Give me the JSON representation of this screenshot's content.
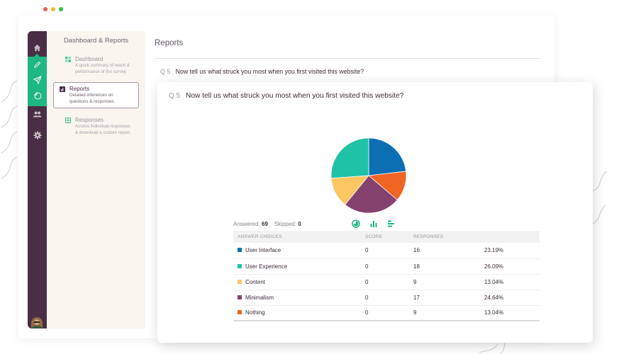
{
  "window": {
    "dots": [
      {
        "name": "close",
        "color": "#f25a55"
      },
      {
        "name": "minimize",
        "color": "#f5b731"
      },
      {
        "name": "maximize",
        "color": "#2fc549"
      }
    ]
  },
  "rail": {
    "items": [
      {
        "name": "home",
        "icon": "home-icon"
      },
      {
        "name": "edit",
        "icon": "pencil-icon"
      },
      {
        "name": "distribute",
        "icon": "send-icon"
      },
      {
        "name": "analyze",
        "icon": "pie-icon"
      },
      {
        "name": "users",
        "icon": "users-icon"
      },
      {
        "name": "settings",
        "icon": "gear-icon"
      }
    ],
    "colors": {
      "bg": "#4a2e45",
      "active": "#1fb784"
    }
  },
  "subnav": {
    "title": "Dashboard & Reports",
    "items": [
      {
        "label": "Dashboard",
        "desc1": "A quick summary of reach &",
        "desc2": "performance of the survey.",
        "active": false
      },
      {
        "label": "Reports",
        "desc1": "Detailed inferences on",
        "desc2": "questions & responses.",
        "active": true
      },
      {
        "label": "Responses",
        "desc1": "Access individual responses",
        "desc2": "& download a custom report.",
        "active": false
      }
    ]
  },
  "main": {
    "title": "Reports",
    "question_num": "Q 5",
    "question_text": "Now tell us what struck you most when you first visited this website?"
  },
  "card": {
    "question_num": "Q 5",
    "question_text": "Now tell us what struck you most when you first visited this website?",
    "answered_label": "Answered:",
    "answered": "69",
    "skipped_label": "Skipped:",
    "skipped": "0",
    "view_icons": [
      "pie-chart-view",
      "bar-chart-view",
      "horizontal-bar-view"
    ],
    "table": {
      "headers": [
        "ANSWER CHOICES",
        "SCORE",
        "RESPONSES",
        ""
      ],
      "rows": [
        {
          "choice": "User Interface",
          "score": "0",
          "responses": "16",
          "percent": "23.19%",
          "color": "#0d6fb3"
        },
        {
          "choice": "User Experience",
          "score": "0",
          "responses": "18",
          "percent": "26.09%",
          "color": "#1fc2a5"
        },
        {
          "choice": "Content",
          "score": "0",
          "responses": "9",
          "percent": "13.04%",
          "color": "#fcc663"
        },
        {
          "choice": "Minimalism",
          "score": "0",
          "responses": "17",
          "percent": "24.64%",
          "color": "#86426f"
        },
        {
          "choice": "Nothing",
          "score": "0",
          "responses": "9",
          "percent": "13.04%",
          "color": "#f06424"
        }
      ]
    }
  },
  "chart_data": {
    "type": "pie",
    "title": "Now tell us what struck you most when you first visited this website?",
    "categories": [
      "User Interface",
      "User Experience",
      "Content",
      "Minimalism",
      "Nothing"
    ],
    "values": [
      16,
      18,
      9,
      17,
      9
    ],
    "percentages": [
      23.19,
      26.09,
      13.04,
      24.64,
      13.04
    ],
    "colors": [
      "#0d6fb3",
      "#1fc2a5",
      "#fcc663",
      "#86426f",
      "#f06424"
    ],
    "total_answered": 69,
    "skipped": 0
  }
}
